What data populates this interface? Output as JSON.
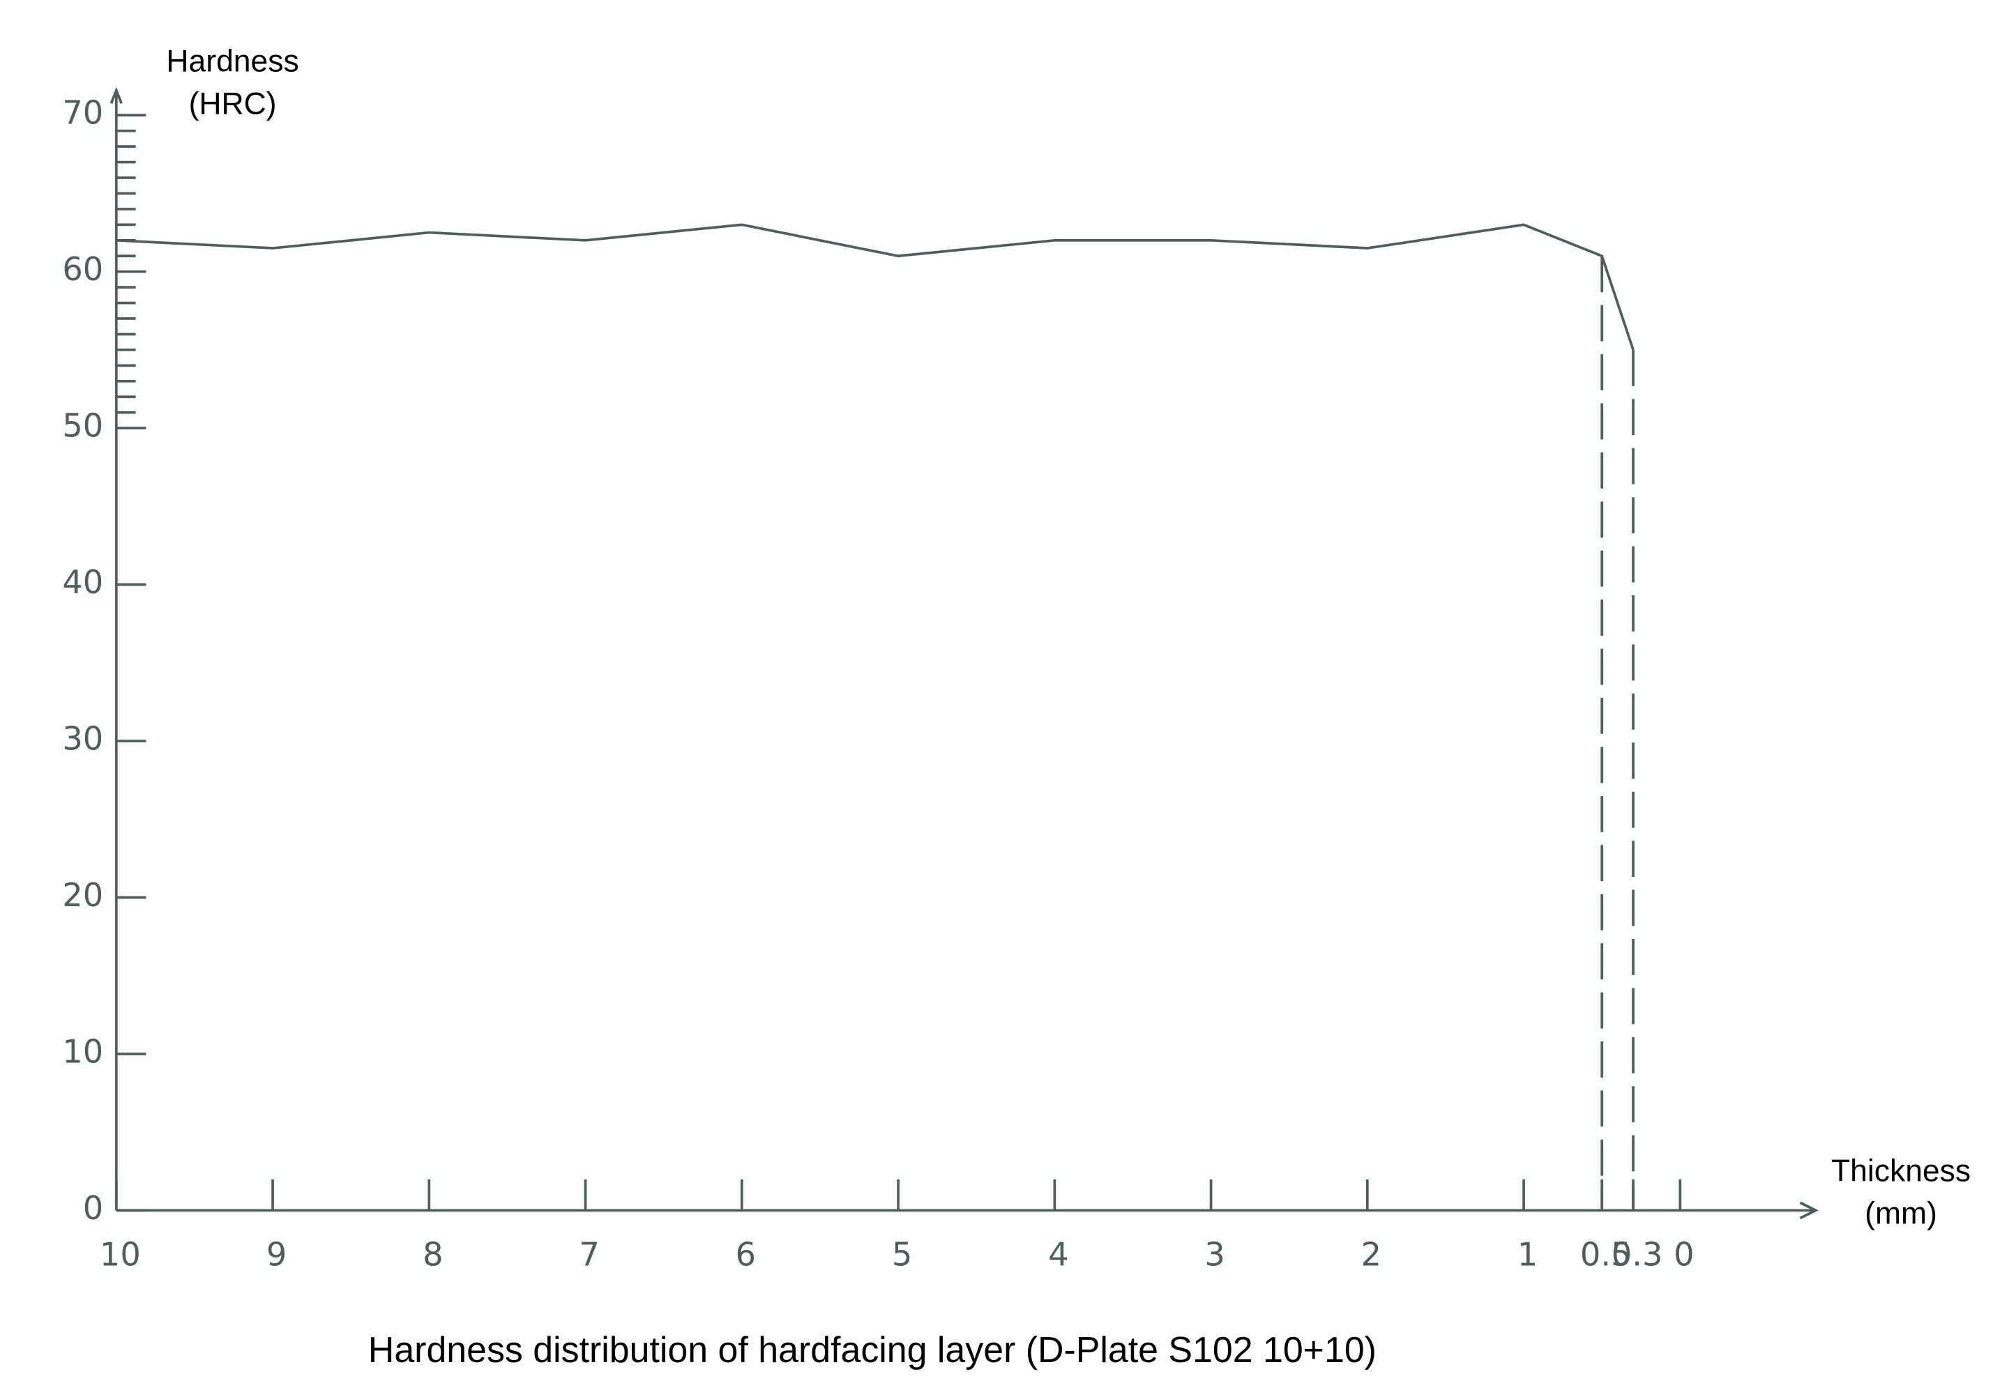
{
  "chart_data": {
    "type": "line",
    "title": "Hardness distribution of hardfacing layer (D-Plate S102 10+10)",
    "ylabel": [
      "Hardness",
      "(HRC)"
    ],
    "xlabel": [
      "Thickness",
      "(mm)"
    ],
    "x": [
      10,
      9,
      8,
      7,
      6,
      5,
      4,
      3,
      2,
      1,
      0.5,
      0.3
    ],
    "series": [
      {
        "name": "Hardness",
        "color": "#4f5d5d",
        "values": [
          62,
          61.5,
          62.5,
          62,
          63,
          61,
          62,
          62,
          61.5,
          63,
          61,
          55
        ]
      }
    ],
    "xlim": [
      10,
      -0.9
    ],
    "xticks": [
      10,
      9,
      8,
      7,
      6,
      5,
      4,
      3,
      2,
      1,
      0.5,
      0.3,
      0
    ],
    "ylim": [
      0,
      71.5
    ],
    "yticks": [
      0,
      10,
      20,
      30,
      40,
      50,
      60,
      70
    ],
    "yminorticks": [
      51,
      52,
      53,
      54,
      55,
      56,
      57,
      58,
      59,
      61,
      62,
      63,
      64,
      65,
      66,
      67,
      68,
      69
    ],
    "grid": false
  }
}
